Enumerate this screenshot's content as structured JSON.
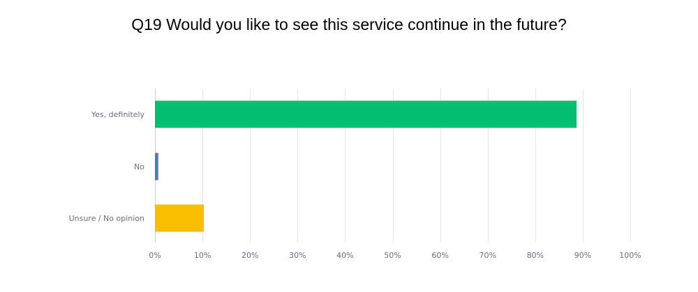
{
  "chart_data": {
    "type": "bar",
    "orientation": "horizontal",
    "title": "Q19 Would you like to see this service continue in the future?",
    "xlabel": "",
    "ylabel": "",
    "categories": [
      "Yes, definitely",
      "No",
      "Unsure / No opinion"
    ],
    "values": [
      88.7,
      0.7,
      10.3
    ],
    "colors": [
      "#00bf6f",
      "#507cb6",
      "#f9be00"
    ],
    "xlim": [
      0,
      100
    ],
    "x_ticks": [
      0,
      10,
      20,
      30,
      40,
      50,
      60,
      70,
      80,
      90,
      100
    ],
    "x_tick_labels": [
      "0%",
      "10%",
      "20%",
      "30%",
      "40%",
      "50%",
      "60%",
      "70%",
      "80%",
      "90%",
      "100%"
    ],
    "grid": true,
    "legend": "none"
  }
}
